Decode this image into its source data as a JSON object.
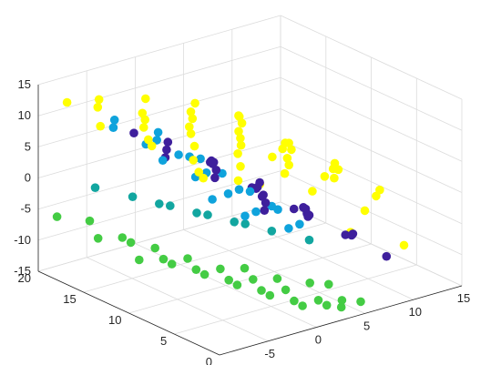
{
  "chart_data": {
    "type": "scatter",
    "projection": "3d",
    "title": "",
    "xlabel": "",
    "ylabel": "",
    "zlabel": "",
    "xlim": [
      -10,
      15
    ],
    "ylim": [
      0,
      20
    ],
    "zlim": [
      -15,
      15
    ],
    "xticks": [
      "-5",
      "0",
      "5",
      "10",
      "15"
    ],
    "yticks": [
      "0",
      "5",
      "10",
      "15",
      "20"
    ],
    "zticks": [
      "-15",
      "-10",
      "-5",
      "0",
      "5",
      "10",
      "15"
    ],
    "grid": true,
    "legend": "none",
    "series": [
      {
        "color": "#ffff00",
        "points": [
          [
            -9.8,
            2,
            12
          ],
          [
            -9.5,
            8,
            13
          ],
          [
            -9.2,
            14,
            12
          ],
          [
            -8.9,
            18,
            13
          ],
          [
            -8.4,
            4,
            11
          ],
          [
            -8.0,
            10,
            12
          ],
          [
            -7.6,
            16,
            13
          ],
          [
            -7.1,
            6,
            11
          ],
          [
            -6.6,
            12,
            12
          ],
          [
            -6.2,
            2,
            10
          ],
          [
            -5.6,
            18,
            12
          ],
          [
            -5.1,
            8,
            11
          ],
          [
            -4.6,
            14,
            11
          ],
          [
            -4.1,
            4,
            10
          ],
          [
            -3.6,
            10,
            11
          ],
          [
            -3.0,
            16,
            10
          ],
          [
            -2.5,
            6,
            10
          ],
          [
            -1.9,
            12,
            10
          ],
          [
            -1.4,
            2,
            9
          ],
          [
            -0.8,
            18,
            10
          ],
          [
            -0.3,
            8,
            9
          ],
          [
            0.3,
            14,
            9
          ],
          [
            0.9,
            4,
            8
          ],
          [
            1.5,
            10,
            8
          ],
          [
            2.0,
            16,
            8
          ],
          [
            2.6,
            6,
            7
          ],
          [
            3.2,
            12,
            7
          ],
          [
            3.7,
            2,
            6
          ],
          [
            4.3,
            18,
            7
          ],
          [
            4.9,
            8,
            6
          ],
          [
            5.4,
            14,
            6
          ],
          [
            6.0,
            4,
            5
          ],
          [
            6.5,
            10,
            5
          ],
          [
            7.0,
            16,
            5
          ],
          [
            7.5,
            6,
            4
          ],
          [
            8.0,
            12,
            3
          ],
          [
            8.4,
            2,
            2
          ],
          [
            8.8,
            18,
            3
          ],
          [
            9.2,
            8,
            1
          ],
          [
            9.6,
            14,
            0
          ],
          [
            9.9,
            4,
            -1
          ],
          [
            10.2,
            10,
            -2
          ],
          [
            10.4,
            16,
            -3
          ],
          [
            10.6,
            6,
            -5
          ],
          [
            10.8,
            12,
            -6
          ],
          [
            10.9,
            2,
            -8
          ],
          [
            11.0,
            18,
            -9
          ],
          [
            11.0,
            8,
            -10
          ]
        ]
      },
      {
        "color": "#3e1f9c",
        "points": [
          [
            -3.5,
            2,
            4
          ],
          [
            -3.0,
            8,
            5
          ],
          [
            -2.5,
            14,
            4
          ],
          [
            -2.0,
            18,
            5
          ],
          [
            -1.5,
            4,
            3
          ],
          [
            -1.0,
            10,
            4
          ],
          [
            -0.5,
            16,
            3
          ],
          [
            0.0,
            6,
            2
          ],
          [
            0.5,
            12,
            3
          ],
          [
            1.0,
            2,
            1
          ],
          [
            1.5,
            18,
            2
          ],
          [
            2.0,
            8,
            0
          ],
          [
            2.5,
            14,
            1
          ],
          [
            3.0,
            4,
            -1
          ],
          [
            3.5,
            10,
            0
          ],
          [
            4.0,
            16,
            -1
          ],
          [
            4.5,
            6,
            -2
          ],
          [
            5.0,
            12,
            -3
          ],
          [
            5.5,
            2,
            -4
          ],
          [
            6.0,
            18,
            -3
          ],
          [
            6.5,
            8,
            -5
          ],
          [
            7.0,
            14,
            -5
          ],
          [
            7.5,
            4,
            -6
          ],
          [
            8.0,
            10,
            -6
          ],
          [
            8.3,
            16,
            -7
          ],
          [
            8.6,
            6,
            -8
          ],
          [
            8.9,
            12,
            -8
          ],
          [
            9.1,
            2,
            -9
          ]
        ]
      },
      {
        "color": "#0fa3dc",
        "points": [
          [
            -7.0,
            4,
            6
          ],
          [
            -6.5,
            10,
            8
          ],
          [
            -6.0,
            16,
            9
          ],
          [
            -5.5,
            2,
            4
          ],
          [
            -5.0,
            8,
            6
          ],
          [
            -4.5,
            14,
            7
          ],
          [
            -4.0,
            18,
            8
          ],
          [
            -3.5,
            6,
            4
          ],
          [
            -3.0,
            12,
            6
          ],
          [
            -2.5,
            4,
            2
          ],
          [
            -2.0,
            10,
            4
          ],
          [
            -1.5,
            16,
            5
          ],
          [
            -1.0,
            2,
            0
          ],
          [
            -0.5,
            8,
            2
          ],
          [
            0.0,
            14,
            3
          ],
          [
            0.5,
            18,
            4
          ],
          [
            1.0,
            6,
            0
          ],
          [
            1.5,
            12,
            1
          ],
          [
            2.0,
            4,
            -2
          ],
          [
            2.5,
            10,
            -1
          ],
          [
            3.0,
            16,
            0
          ],
          [
            3.5,
            8,
            -3
          ]
        ]
      },
      {
        "color": "#12a6a0",
        "points": [
          [
            -6.0,
            18,
            -2
          ],
          [
            -5.0,
            12,
            -1
          ],
          [
            -4.0,
            16,
            -3
          ],
          [
            -3.0,
            10,
            -2
          ],
          [
            -2.0,
            14,
            -4
          ],
          [
            -1.0,
            8,
            -3
          ],
          [
            0.0,
            12,
            -5
          ],
          [
            1.0,
            6,
            -4
          ],
          [
            2.0,
            10,
            -6
          ],
          [
            3.0,
            4,
            -5
          ]
        ]
      },
      {
        "color": "#44cc44",
        "points": [
          [
            -9.0,
            19,
            -6
          ],
          [
            -8.5,
            15,
            -7
          ],
          [
            -8.0,
            11,
            -8
          ],
          [
            -7.5,
            17,
            -6
          ],
          [
            -7.0,
            13,
            -7
          ],
          [
            -6.5,
            9,
            -8
          ],
          [
            -6.0,
            15,
            -8
          ],
          [
            -5.5,
            11,
            -9
          ],
          [
            -5.0,
            7,
            -9
          ],
          [
            -4.5,
            13,
            -9
          ],
          [
            -4.0,
            9,
            -10
          ],
          [
            -3.5,
            5,
            -10
          ],
          [
            -3.0,
            11,
            -10
          ],
          [
            -2.5,
            7,
            -11
          ],
          [
            -2.0,
            3,
            -11
          ],
          [
            -1.5,
            9,
            -11
          ],
          [
            -1.0,
            5,
            -12
          ],
          [
            -0.5,
            1,
            -12
          ],
          [
            0.0,
            7,
            -12
          ],
          [
            0.5,
            3,
            -13
          ],
          [
            1.0,
            9,
            -12
          ],
          [
            1.5,
            5,
            -13
          ],
          [
            2.0,
            1,
            -13
          ],
          [
            2.5,
            7,
            -13
          ],
          [
            3.0,
            3,
            -14
          ],
          [
            3.5,
            1,
            -14
          ],
          [
            4.0,
            5,
            -13
          ],
          [
            4.5,
            2,
            -14
          ],
          [
            5.0,
            4,
            -13
          ],
          [
            5.5,
            1,
            -14
          ]
        ]
      }
    ]
  }
}
